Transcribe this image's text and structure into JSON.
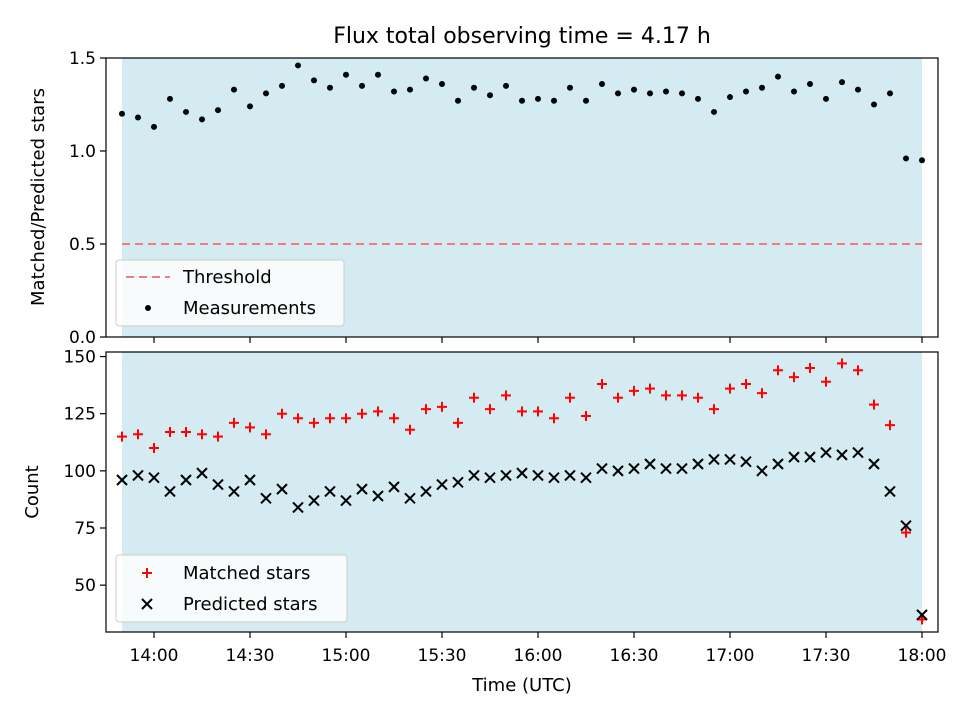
{
  "title": "Flux total observing time = 4.17 h",
  "colors": {
    "band": "#d4ebf1",
    "threshold": "#f07c7c",
    "matched": "#ff0000",
    "predicted": "#000000"
  },
  "chart_data": [
    {
      "type": "scatter",
      "ylabel": "Matched/Predicted stars",
      "ylim": [
        0,
        1.5
      ],
      "yticks": [
        {
          "v": 0,
          "label": "0.0"
        },
        {
          "v": 0.5,
          "label": "0.5"
        },
        {
          "v": 1.0,
          "label": "1.0"
        },
        {
          "v": 1.5,
          "label": "1.5"
        }
      ],
      "legend": [
        "Threshold",
        "Measurements"
      ],
      "legend_position": "lower-left",
      "threshold": 0.5,
      "series": [
        {
          "name": "Measurements",
          "values": [
            1.2,
            1.18,
            1.13,
            1.28,
            1.21,
            1.17,
            1.22,
            1.33,
            1.24,
            1.31,
            1.35,
            1.46,
            1.38,
            1.34,
            1.41,
            1.35,
            1.41,
            1.32,
            1.33,
            1.39,
            1.36,
            1.27,
            1.34,
            1.3,
            1.35,
            1.27,
            1.28,
            1.27,
            1.34,
            1.27,
            1.36,
            1.31,
            1.33,
            1.31,
            1.32,
            1.31,
            1.28,
            1.21,
            1.29,
            1.32,
            1.34,
            1.4,
            1.32,
            1.36,
            1.28,
            1.37,
            1.33,
            1.25,
            1.31,
            0.96,
            0.95
          ]
        }
      ]
    },
    {
      "type": "scatter",
      "xlabel": "Time (UTC)",
      "ylabel": "Count",
      "ylim": [
        29.5,
        152
      ],
      "yticks": [
        {
          "v": 50,
          "label": "50"
        },
        {
          "v": 75,
          "label": "75"
        },
        {
          "v": 100,
          "label": "100"
        },
        {
          "v": 125,
          "label": "125"
        },
        {
          "v": 150,
          "label": "150"
        }
      ],
      "legend": [
        "Matched stars",
        "Predicted stars"
      ],
      "legend_position": "lower-left",
      "series": [
        {
          "name": "Matched stars",
          "values": [
            115,
            116,
            110,
            117,
            117,
            116,
            115,
            121,
            119,
            116,
            125,
            123,
            121,
            123,
            123,
            125,
            126,
            123,
            118,
            127,
            128,
            121,
            132,
            127,
            133,
            126,
            126,
            123,
            132,
            124,
            138,
            132,
            135,
            136,
            133,
            133,
            132,
            127,
            136,
            138,
            134,
            144,
            141,
            145,
            139,
            147,
            144,
            129,
            120,
            73,
            35
          ]
        },
        {
          "name": "Predicted stars",
          "values": [
            96,
            98,
            97,
            91,
            96,
            99,
            94,
            91,
            96,
            88,
            92,
            84,
            87,
            91,
            87,
            92,
            89,
            93,
            88,
            91,
            94,
            95,
            98,
            97,
            98,
            99,
            98,
            97,
            98,
            97,
            101,
            100,
            101,
            103,
            101,
            101,
            103,
            105,
            105,
            104,
            100,
            103,
            106,
            106,
            108,
            107,
            108,
            103,
            91,
            76,
            37
          ]
        }
      ]
    }
  ],
  "shared_x": {
    "xlim": [
      "13:45",
      "18:05"
    ],
    "times": [
      "13:50",
      "13:55",
      "14:00",
      "14:05",
      "14:10",
      "14:15",
      "14:20",
      "14:25",
      "14:30",
      "14:35",
      "14:40",
      "14:45",
      "14:50",
      "14:55",
      "15:00",
      "15:05",
      "15:10",
      "15:15",
      "15:20",
      "15:25",
      "15:30",
      "15:35",
      "15:40",
      "15:45",
      "15:50",
      "15:55",
      "16:00",
      "16:05",
      "16:10",
      "16:15",
      "16:20",
      "16:25",
      "16:30",
      "16:35",
      "16:40",
      "16:45",
      "16:50",
      "16:55",
      "17:00",
      "17:05",
      "17:10",
      "17:15",
      "17:20",
      "17:25",
      "17:30",
      "17:35",
      "17:40",
      "17:45",
      "17:50",
      "17:55",
      "18:00"
    ],
    "ticks": [
      "14:00",
      "14:30",
      "15:00",
      "15:30",
      "16:00",
      "16:30",
      "17:00",
      "17:30",
      "18:00"
    ],
    "band": [
      "13:50",
      "18:00"
    ]
  }
}
